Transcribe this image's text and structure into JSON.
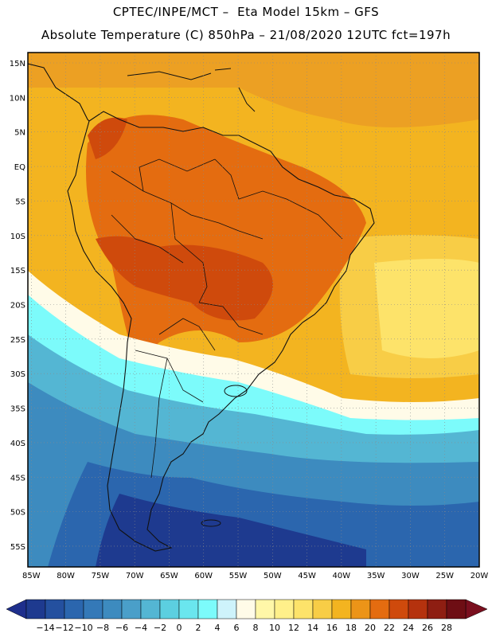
{
  "header": {
    "line1": "CPTEC/INPE/MCT –  Eta Model 15km – GFS",
    "line2": "Absolute Temperature (C) 850hPa – 21/08/2020 12UTC fct=197h"
  },
  "map": {
    "lat_labels": [
      "15N",
      "10N",
      "5N",
      "EQ",
      "5S",
      "10S",
      "15S",
      "20S",
      "25S",
      "30S",
      "35S",
      "40S",
      "45S",
      "50S",
      "55S"
    ],
    "lat_values": [
      15,
      10,
      5,
      0,
      -5,
      -10,
      -15,
      -20,
      -25,
      -30,
      -35,
      -40,
      -45,
      -50,
      -55
    ],
    "lon_labels": [
      "85W",
      "80W",
      "75W",
      "70W",
      "65W",
      "60W",
      "55W",
      "50W",
      "45W",
      "40W",
      "35W",
      "30W",
      "25W",
      "20W"
    ],
    "lon_values": [
      -85,
      -80,
      -75,
      -70,
      -65,
      -60,
      -55,
      -50,
      -45,
      -40,
      -35,
      -30,
      -25,
      -20
    ],
    "extent": {
      "lon_min": -85.5,
      "lon_max": -20,
      "lat_min": -58,
      "lat_max": 16.5
    }
  },
  "colorbar": {
    "labels": [
      "-14",
      "-12",
      "-10",
      "-8",
      "-6",
      "-4",
      "-2",
      "0",
      "2",
      "4",
      "6",
      "8",
      "10",
      "12",
      "14",
      "16",
      "18",
      "20",
      "22",
      "24",
      "26",
      "28"
    ],
    "low_color": "#1e2f8c",
    "high_color": "#7a0f1e",
    "colors": [
      "#1e3a8f",
      "#24509f",
      "#2b66ae",
      "#3479b8",
      "#3d8bbf",
      "#4a9fc9",
      "#54b6d3",
      "#5ccfe0",
      "#6ae6ee",
      "#7cfbfb",
      "#cef3fb",
      "#fffbe8",
      "#fff7a8",
      "#fff08a",
      "#fde36a",
      "#f8cd46",
      "#f3b420",
      "#ec9418",
      "#e46c10",
      "#cf4a0c",
      "#b5320e",
      "#8e1e12",
      "#6e0e14"
    ]
  }
}
